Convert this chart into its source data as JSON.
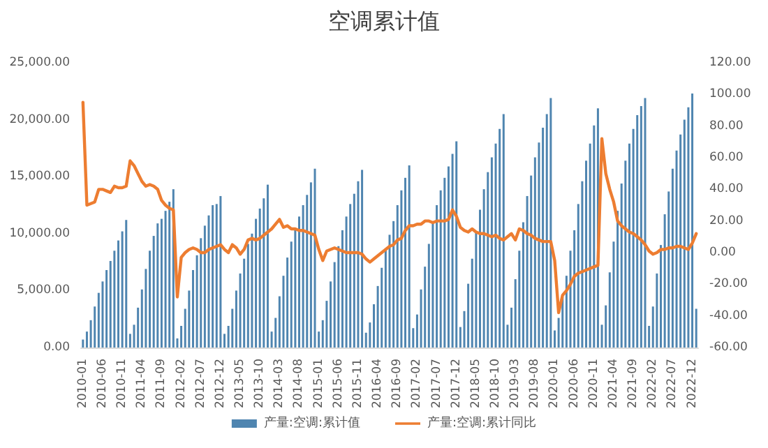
{
  "chart_data": {
    "type": "bar",
    "title": "空调累计值",
    "categories": [
      "2010-01",
      null,
      null,
      null,
      null,
      "2010-06",
      null,
      null,
      null,
      null,
      "2010-11",
      null,
      null,
      null,
      null,
      "2011-04",
      null,
      null,
      null,
      null,
      "2011-09",
      null,
      null,
      null,
      null,
      "2012-02",
      null,
      null,
      null,
      null,
      "2012-07",
      null,
      null,
      null,
      null,
      "2012-12",
      null,
      null,
      null,
      null,
      "2013-05",
      null,
      null,
      null,
      null,
      "2013-10",
      null,
      null,
      null,
      null,
      "2014-03",
      null,
      null,
      null,
      null,
      "2014-08",
      null,
      null,
      null,
      null,
      "2015-01",
      null,
      null,
      null,
      null,
      "2015-06",
      null,
      null,
      null,
      null,
      "2015-11",
      null,
      null,
      null,
      null,
      "2016-04",
      null,
      null,
      null,
      null,
      "2016-09",
      null,
      null,
      null,
      null,
      "2017-02",
      null,
      null,
      null,
      null,
      "2017-07",
      null,
      null,
      null,
      null,
      "2017-12",
      null,
      null,
      null,
      null,
      "2018-05",
      null,
      null,
      null,
      null,
      "2018-10",
      null,
      null,
      null,
      null,
      "2019-03",
      null,
      null,
      null,
      null,
      "2019-08",
      null,
      null,
      null,
      null,
      "2020-01",
      null,
      null,
      null,
      null,
      "2020-06",
      null,
      null,
      null,
      null,
      "2020-11",
      null,
      null,
      null,
      null,
      "2021-04",
      null,
      null,
      null,
      null,
      "2021-09",
      null,
      null,
      null,
      null,
      "2022-02",
      null,
      null,
      null,
      null,
      "2022-07",
      null,
      null,
      null,
      null,
      "2022-12",
      null
    ],
    "series": [
      {
        "name": "产量:空调:累计值",
        "color": "#4f85b0",
        "values": [
          700,
          1400,
          2400,
          3600,
          4800,
          5800,
          6800,
          7600,
          8500,
          9400,
          10200,
          11200,
          1200,
          2000,
          3500,
          5100,
          6900,
          8500,
          9800,
          10900,
          11300,
          12000,
          12800,
          13900,
          800,
          1900,
          3400,
          5000,
          6800,
          8100,
          9600,
          10700,
          11600,
          12500,
          12600,
          13300,
          1200,
          1900,
          3400,
          5000,
          6500,
          7800,
          9100,
          10000,
          11300,
          12200,
          13100,
          14300,
          1400,
          2600,
          4500,
          6300,
          7900,
          9300,
          10500,
          11500,
          12500,
          13400,
          14500,
          15700,
          1400,
          2400,
          4100,
          5800,
          7500,
          8900,
          10300,
          11500,
          12600,
          13500,
          14600,
          15600,
          1300,
          2200,
          3800,
          5400,
          7000,
          8600,
          9900,
          11100,
          12500,
          13800,
          14900,
          16000,
          1700,
          2900,
          5100,
          7100,
          9100,
          11000,
          12500,
          13800,
          14900,
          15900,
          17000,
          18100,
          1800,
          3200,
          5600,
          7800,
          10100,
          12100,
          13900,
          15400,
          16700,
          17900,
          19200,
          20500,
          2000,
          3500,
          6000,
          8500,
          11000,
          13300,
          15100,
          16700,
          18000,
          19300,
          20500,
          21900,
          1500,
          2600,
          4400,
          6300,
          8500,
          10300,
          12600,
          14600,
          16400,
          17900,
          19500,
          21000,
          2000,
          3700,
          6600,
          9300,
          12000,
          14400,
          16400,
          17900,
          19200,
          20400,
          21200,
          21900,
          1900,
          3600,
          6500,
          9000,
          11700,
          13700,
          15700,
          17300,
          18700,
          20000,
          21100,
          22300,
          3400
        ]
      },
      {
        "name": "产量:空调:累计同比",
        "type": "line",
        "axis": "y2",
        "color": "#ed7d31",
        "values": [
          95,
          30,
          31,
          32,
          40,
          40,
          39,
          38,
          42,
          41,
          41,
          42,
          58,
          55,
          50,
          45,
          42,
          43,
          42,
          40,
          33,
          30,
          28,
          27,
          -28,
          -3,
          0,
          2,
          3,
          2,
          0,
          0,
          2,
          3,
          4,
          5,
          2,
          0,
          5,
          3,
          -1,
          2,
          8,
          9,
          8,
          9,
          11,
          13,
          15,
          18,
          21,
          16,
          17,
          15,
          15,
          14,
          14,
          13,
          12,
          11,
          2,
          -5,
          1,
          2,
          3,
          2,
          1,
          0,
          0,
          0,
          0,
          -1,
          -4,
          -6,
          -4,
          -2,
          0,
          2,
          4,
          5,
          8,
          9,
          14,
          17,
          17,
          18,
          18,
          20,
          20,
          19,
          20,
          20,
          20,
          21,
          27,
          23,
          16,
          14,
          13,
          15,
          13,
          12,
          12,
          11,
          10,
          11,
          9,
          8,
          10,
          12,
          8,
          15,
          14,
          12,
          11,
          9,
          8,
          7,
          7,
          7,
          -5,
          -38,
          -27,
          -24,
          -20,
          -15,
          -13,
          -12,
          -11,
          -10,
          -9,
          -8,
          72,
          50,
          40,
          32,
          20,
          17,
          15,
          13,
          12,
          10,
          8,
          5,
          1,
          -1,
          0,
          2,
          2,
          3,
          3,
          4,
          4,
          3,
          2,
          6,
          12
        ]
      }
    ],
    "ylim": [
      0,
      25000
    ],
    "yticks": [
      {
        "value": 0,
        "label": "0.00"
      },
      {
        "value": 5000,
        "label": "5,000.00"
      },
      {
        "value": 10000,
        "label": "10,000.00"
      },
      {
        "value": 15000,
        "label": "15,000.00"
      },
      {
        "value": 20000,
        "label": "20,000.00"
      },
      {
        "value": 25000,
        "label": "25,000.00"
      }
    ],
    "y2lim": [
      -60,
      120
    ],
    "y2ticks": [
      {
        "value": -60,
        "label": "-60.00"
      },
      {
        "value": -40,
        "label": "-40.00"
      },
      {
        "value": -20,
        "label": "-20.00"
      },
      {
        "value": 0,
        "label": "0.00"
      },
      {
        "value": 20,
        "label": "20.00"
      },
      {
        "value": 40,
        "label": "40.00"
      },
      {
        "value": 60,
        "label": "60.00"
      },
      {
        "value": 80,
        "label": "80.00"
      },
      {
        "value": 100,
        "label": "100.00"
      },
      {
        "value": 120,
        "label": "120.00"
      }
    ],
    "legend": "bottom",
    "grid": false,
    "marker": "none",
    "line_style": "solid"
  }
}
